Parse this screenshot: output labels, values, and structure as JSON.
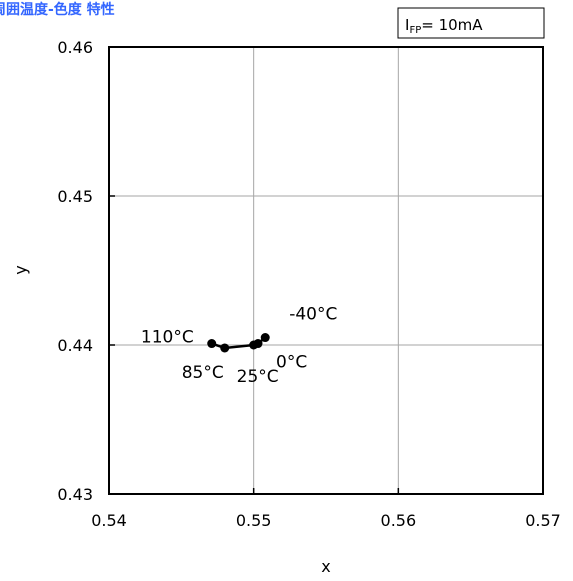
{
  "chart_data": {
    "type": "scatter",
    "title": "周囲温度-色度 特性",
    "condition": {
      "symbol": "I",
      "subscript": "FP",
      "value": "= 10mA"
    },
    "xlabel": "x",
    "ylabel": "y",
    "xlim": [
      0.54,
      0.57
    ],
    "ylim": [
      0.43,
      0.46
    ],
    "xticks": [
      "0.54",
      "0.55",
      "0.56",
      "0.57"
    ],
    "yticks": [
      "0.46",
      "0.45",
      "0.44",
      "0.43"
    ],
    "grid": true,
    "series": [
      {
        "points": [
          {
            "x": 0.5508,
            "y": 0.4405,
            "label": "-40°C"
          },
          {
            "x": 0.5503,
            "y": 0.4401,
            "label": "0°C"
          },
          {
            "x": 0.55,
            "y": 0.44,
            "label": "25°C"
          },
          {
            "x": 0.548,
            "y": 0.4398,
            "label": "85°C"
          },
          {
            "x": 0.5471,
            "y": 0.4401,
            "label": "110°C"
          }
        ]
      }
    ],
    "colors": {
      "title": "#3366ff",
      "series": "#000000",
      "grid": "#a6a6a6"
    }
  }
}
